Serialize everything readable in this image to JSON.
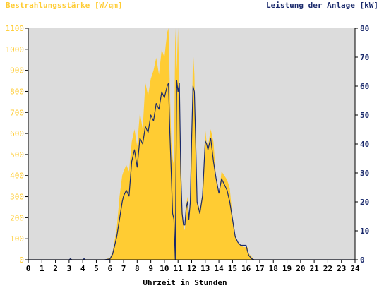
{
  "chart_data": {
    "type": "area",
    "title_left": "Bestrahlungsstärke [W/qm]",
    "title_right": "Leistung der Anlage [kW]",
    "xlabel": "Uhrzeit in Stunden",
    "x_ticks": [
      "0",
      "1",
      "2",
      "3",
      "4",
      "5",
      "6",
      "7",
      "8",
      "9",
      "10",
      "11",
      "12",
      "13",
      "14",
      "15",
      "16",
      "17",
      "18",
      "19",
      "20",
      "21",
      "22",
      "23",
      "24"
    ],
    "y_left_ticks": [
      "0",
      "100",
      "200",
      "300",
      "400",
      "500",
      "600",
      "700",
      "800",
      "900",
      "1000",
      "1100"
    ],
    "y_right_ticks": [
      "0",
      "10",
      "20",
      "30",
      "40",
      "50",
      "60",
      "70",
      "80"
    ],
    "xlim": [
      0,
      24
    ],
    "ylim_left": [
      0,
      1100
    ],
    "ylim_right": [
      0,
      80
    ],
    "grid": false,
    "colors": {
      "plot_bg": "#dcdcdc",
      "irradiance_fill": "#ffcc33",
      "power_line": "#1a2a6c",
      "left_axis_text": "#ffcc33",
      "right_axis_text": "#1a2a6c",
      "bottom_axis_text": "#000000"
    },
    "series": [
      {
        "axis": "left",
        "style": "area",
        "x": [
          0,
          3,
          3.1,
          3.2,
          5.6,
          6,
          6.2,
          6.5,
          6.7,
          6.9,
          7.0,
          7.2,
          7.4,
          7.6,
          7.8,
          8.0,
          8.2,
          8.4,
          8.6,
          8.8,
          9.0,
          9.2,
          9.4,
          9.6,
          9.8,
          10.0,
          10.1,
          10.2,
          10.3,
          10.4,
          10.5,
          10.6,
          10.7,
          10.8,
          10.9,
          11.0,
          11.1,
          11.2,
          11.3,
          11.4,
          11.5,
          11.6,
          11.7,
          11.8,
          11.9,
          12.0,
          12.1,
          12.2,
          12.3,
          12.4,
          12.6,
          12.8,
          13.0,
          13.1,
          13.2,
          13.4,
          13.6,
          13.8,
          14.0,
          14.2,
          14.4,
          14.6,
          14.8,
          15.0,
          15.2,
          15.4,
          15.6,
          15.8,
          16.0,
          16.1,
          16.2,
          16.4,
          16.6,
          16.8,
          17.0,
          17.2,
          17.4,
          17.6,
          17.8,
          18.0,
          18.2,
          18.4,
          18.6,
          18.8,
          19.0,
          24
        ],
        "values": [
          0,
          0,
          8,
          0,
          0,
          10,
          40,
          150,
          300,
          400,
          420,
          450,
          420,
          560,
          620,
          540,
          700,
          620,
          840,
          780,
          860,
          900,
          960,
          880,
          1000,
          960,
          1020,
          1080,
          1100,
          820,
          560,
          480,
          450,
          1100,
          900,
          1100,
          820,
          520,
          260,
          160,
          140,
          260,
          300,
          200,
          280,
          560,
          1000,
          880,
          560,
          280,
          240,
          320,
          620,
          560,
          540,
          620,
          560,
          380,
          320,
          420,
          400,
          380,
          340,
          200,
          120,
          80,
          70,
          60,
          60,
          60,
          30,
          15,
          0,
          0,
          0,
          0,
          0,
          0,
          0,
          0,
          0,
          0,
          0,
          0,
          0,
          0
        ]
      },
      {
        "axis": "right",
        "style": "line",
        "x": [
          0,
          3,
          3.1,
          3.2,
          4.0,
          4.1,
          4.2,
          5.6,
          6,
          6.2,
          6.5,
          6.7,
          6.9,
          7.0,
          7.2,
          7.4,
          7.6,
          7.8,
          8.0,
          8.2,
          8.4,
          8.6,
          8.8,
          9.0,
          9.2,
          9.4,
          9.6,
          9.8,
          10.0,
          10.1,
          10.2,
          10.3,
          10.4,
          10.5,
          10.6,
          10.7,
          10.8,
          10.9,
          11.0,
          11.1,
          11.2,
          11.3,
          11.4,
          11.5,
          11.6,
          11.7,
          11.8,
          11.9,
          12.0,
          12.1,
          12.2,
          12.3,
          12.4,
          12.6,
          12.8,
          13.0,
          13.1,
          13.2,
          13.4,
          13.6,
          13.8,
          14.0,
          14.2,
          14.4,
          14.6,
          14.8,
          15.0,
          15.2,
          15.4,
          15.6,
          15.8,
          16.0,
          16.1,
          16.2,
          16.4,
          16.6,
          16.8,
          17.0,
          17.2,
          17.4,
          17.6,
          17.8,
          18.0,
          18.2,
          18.4,
          18.6,
          18.8,
          19.0,
          24
        ],
        "values": [
          0,
          0,
          0.4,
          0,
          0,
          0.4,
          0,
          0,
          0.3,
          2,
          8,
          14,
          20,
          22,
          24,
          22,
          34,
          38,
          32,
          42,
          40,
          46,
          44,
          50,
          48,
          54,
          52,
          58,
          56,
          58,
          60,
          61,
          44,
          30,
          16,
          14,
          0,
          62,
          58,
          61,
          30,
          16,
          12,
          12,
          18,
          20,
          14,
          20,
          42,
          60,
          58,
          40,
          20,
          16,
          22,
          41,
          40,
          38,
          42,
          34,
          28,
          23,
          28,
          26,
          24,
          20,
          14,
          8,
          6,
          5,
          5,
          5,
          3,
          1.5,
          0.4,
          0,
          0,
          0,
          0,
          0,
          0,
          0,
          0,
          0,
          0,
          0,
          0,
          0,
          0
        ]
      }
    ]
  }
}
